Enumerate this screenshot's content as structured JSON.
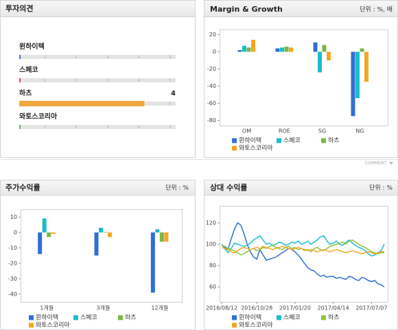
{
  "opinion": {
    "title": "투자의견",
    "scale": [
      1,
      2,
      3,
      4,
      5
    ],
    "items": [
      {
        "name": "윈하이텍",
        "color": "#3a75d8",
        "value": null
      },
      {
        "name": "스페코",
        "color": "#e04848",
        "value": null
      },
      {
        "name": "하츠",
        "color": "#f0a742",
        "value": 4
      },
      {
        "name": "와토스코리아",
        "color": "#5db85c",
        "value": null
      }
    ]
  },
  "comment": "COMMENT",
  "chart_data": [
    {
      "type": "bar",
      "title": "Margin & Growth",
      "unit": "단위 : %, 배",
      "categories": [
        "OM",
        "ROE",
        "SG",
        "NG"
      ],
      "series": [
        {
          "name": "윈하이텍",
          "color": "#2f6fd6",
          "values": [
            2,
            4,
            11,
            -75
          ]
        },
        {
          "name": "스페코",
          "color": "#1bbccc",
          "values": [
            7,
            5,
            -24,
            -54
          ]
        },
        {
          "name": "하츠",
          "color": "#7cb644",
          "values": [
            5,
            6,
            8,
            4
          ]
        },
        {
          "name": "와토스코리아",
          "color": "#f5a623",
          "values": [
            14,
            5,
            -10,
            -35
          ]
        }
      ],
      "ylim": [
        -86,
        26
      ],
      "yticks": [
        20,
        0,
        -20,
        -40,
        -60,
        -80
      ]
    },
    {
      "type": "bar",
      "title": "주가수익률",
      "unit": "단위 : %",
      "categories": [
        "1개월",
        "3개월",
        "12개월"
      ],
      "series": [
        {
          "name": "윈하이텍",
          "color": "#2f6fd6",
          "values": [
            -14,
            -15,
            -39
          ]
        },
        {
          "name": "스페코",
          "color": "#1bbccc",
          "values": [
            9,
            3,
            2
          ]
        },
        {
          "name": "하츠",
          "color": "#7cb644",
          "values": [
            -3,
            0.3,
            -6
          ]
        },
        {
          "name": "와토스코리아",
          "color": "#f5a623",
          "values": [
            -1,
            -3,
            -6
          ]
        }
      ],
      "ylim": [
        -45,
        15
      ],
      "yticks": [
        10,
        0,
        -10,
        -20,
        -30,
        -40
      ]
    },
    {
      "type": "line",
      "title": "상대 수익률",
      "unit": "단위 : %",
      "x": [
        "2016/08/12",
        "2016/08/19",
        "2016/08/26",
        "2016/09/02",
        "2016/09/09",
        "2016/09/16",
        "2016/09/23",
        "2016/09/30",
        "2016/10/07",
        "2016/10/14",
        "2016/10/21",
        "2016/10/28",
        "2016/11/04",
        "2016/11/11",
        "2016/11/18",
        "2016/11/25",
        "2016/12/02",
        "2016/12/09",
        "2016/12/16",
        "2016/12/23",
        "2016/12/30",
        "2017/01/06",
        "2017/01/13",
        "2017/01/20",
        "2017/01/27",
        "2017/02/03",
        "2017/02/10",
        "2017/02/17",
        "2017/02/24",
        "2017/03/03",
        "2017/03/10",
        "2017/03/17",
        "2017/03/24",
        "2017/03/31",
        "2017/04/07",
        "2017/04/14",
        "2017/04/21",
        "2017/04/28",
        "2017/05/05",
        "2017/05/12",
        "2017/05/19",
        "2017/05/26",
        "2017/06/02",
        "2017/06/09",
        "2017/06/16",
        "2017/06/23",
        "2017/06/30",
        "2017/07/07",
        "2017/07/14",
        "2017/07/21",
        "2017/07/28",
        "2017/08/04"
      ],
      "xticks": [
        "2016/08/12",
        "2016/10/28",
        "2017/01/20",
        "2017/04/14",
        "2017/07/07"
      ],
      "series": [
        {
          "name": "윈하이텍",
          "color": "#2f6fd6",
          "values": [
            100,
            97,
            95,
            105,
            114,
            120,
            118,
            110,
            100,
            93,
            88,
            86,
            95,
            90,
            85,
            86,
            87,
            88,
            90,
            92,
            94,
            96,
            95,
            93,
            90,
            86,
            82,
            78,
            76,
            75,
            72,
            70,
            71,
            69,
            70,
            70,
            68,
            69,
            68,
            67,
            70,
            69,
            67,
            66,
            69,
            68,
            66,
            65,
            66,
            63,
            62,
            60
          ]
        },
        {
          "name": "스페코",
          "color": "#1bbccc",
          "values": [
            100,
            96,
            92,
            96,
            101,
            100,
            99,
            98,
            99,
            101,
            104,
            106,
            108,
            104,
            100,
            101,
            99,
            100,
            102,
            101,
            99,
            100,
            102,
            101,
            103,
            100,
            101,
            103,
            100,
            102,
            104,
            107,
            108,
            103,
            100,
            101,
            103,
            100,
            99,
            102,
            104,
            101,
            99,
            97,
            96,
            94,
            91,
            89,
            90,
            92,
            94,
            100
          ]
        },
        {
          "name": "하츠",
          "color": "#8cc43c",
          "values": [
            99,
            98,
            96,
            95,
            94,
            92,
            90,
            91,
            93,
            95,
            96,
            94,
            95,
            97,
            96,
            98,
            99,
            97,
            96,
            95,
            97,
            98,
            96,
            97,
            95,
            96,
            94,
            95,
            93,
            96,
            97,
            95,
            94,
            96,
            98,
            99,
            100,
            101,
            102,
            100,
            103,
            104,
            102,
            100,
            98,
            97,
            95,
            93,
            92,
            91,
            92,
            92
          ]
        },
        {
          "name": "와토스코리아",
          "color": "#f5a623",
          "values": [
            97,
            96,
            95,
            93,
            92,
            94,
            96,
            97,
            96,
            95,
            96,
            97,
            96,
            98,
            97,
            96,
            95,
            96,
            97,
            98,
            97,
            96,
            95,
            96,
            97,
            96,
            95,
            94,
            95,
            94,
            93,
            94,
            95,
            94,
            93,
            94,
            95,
            94,
            93,
            92,
            93,
            94,
            93,
            92,
            91,
            92,
            93,
            92,
            91,
            92,
            93,
            93
          ]
        }
      ],
      "ylim": [
        46,
        136
      ],
      "yticks": [
        120,
        100,
        80,
        60
      ]
    }
  ]
}
